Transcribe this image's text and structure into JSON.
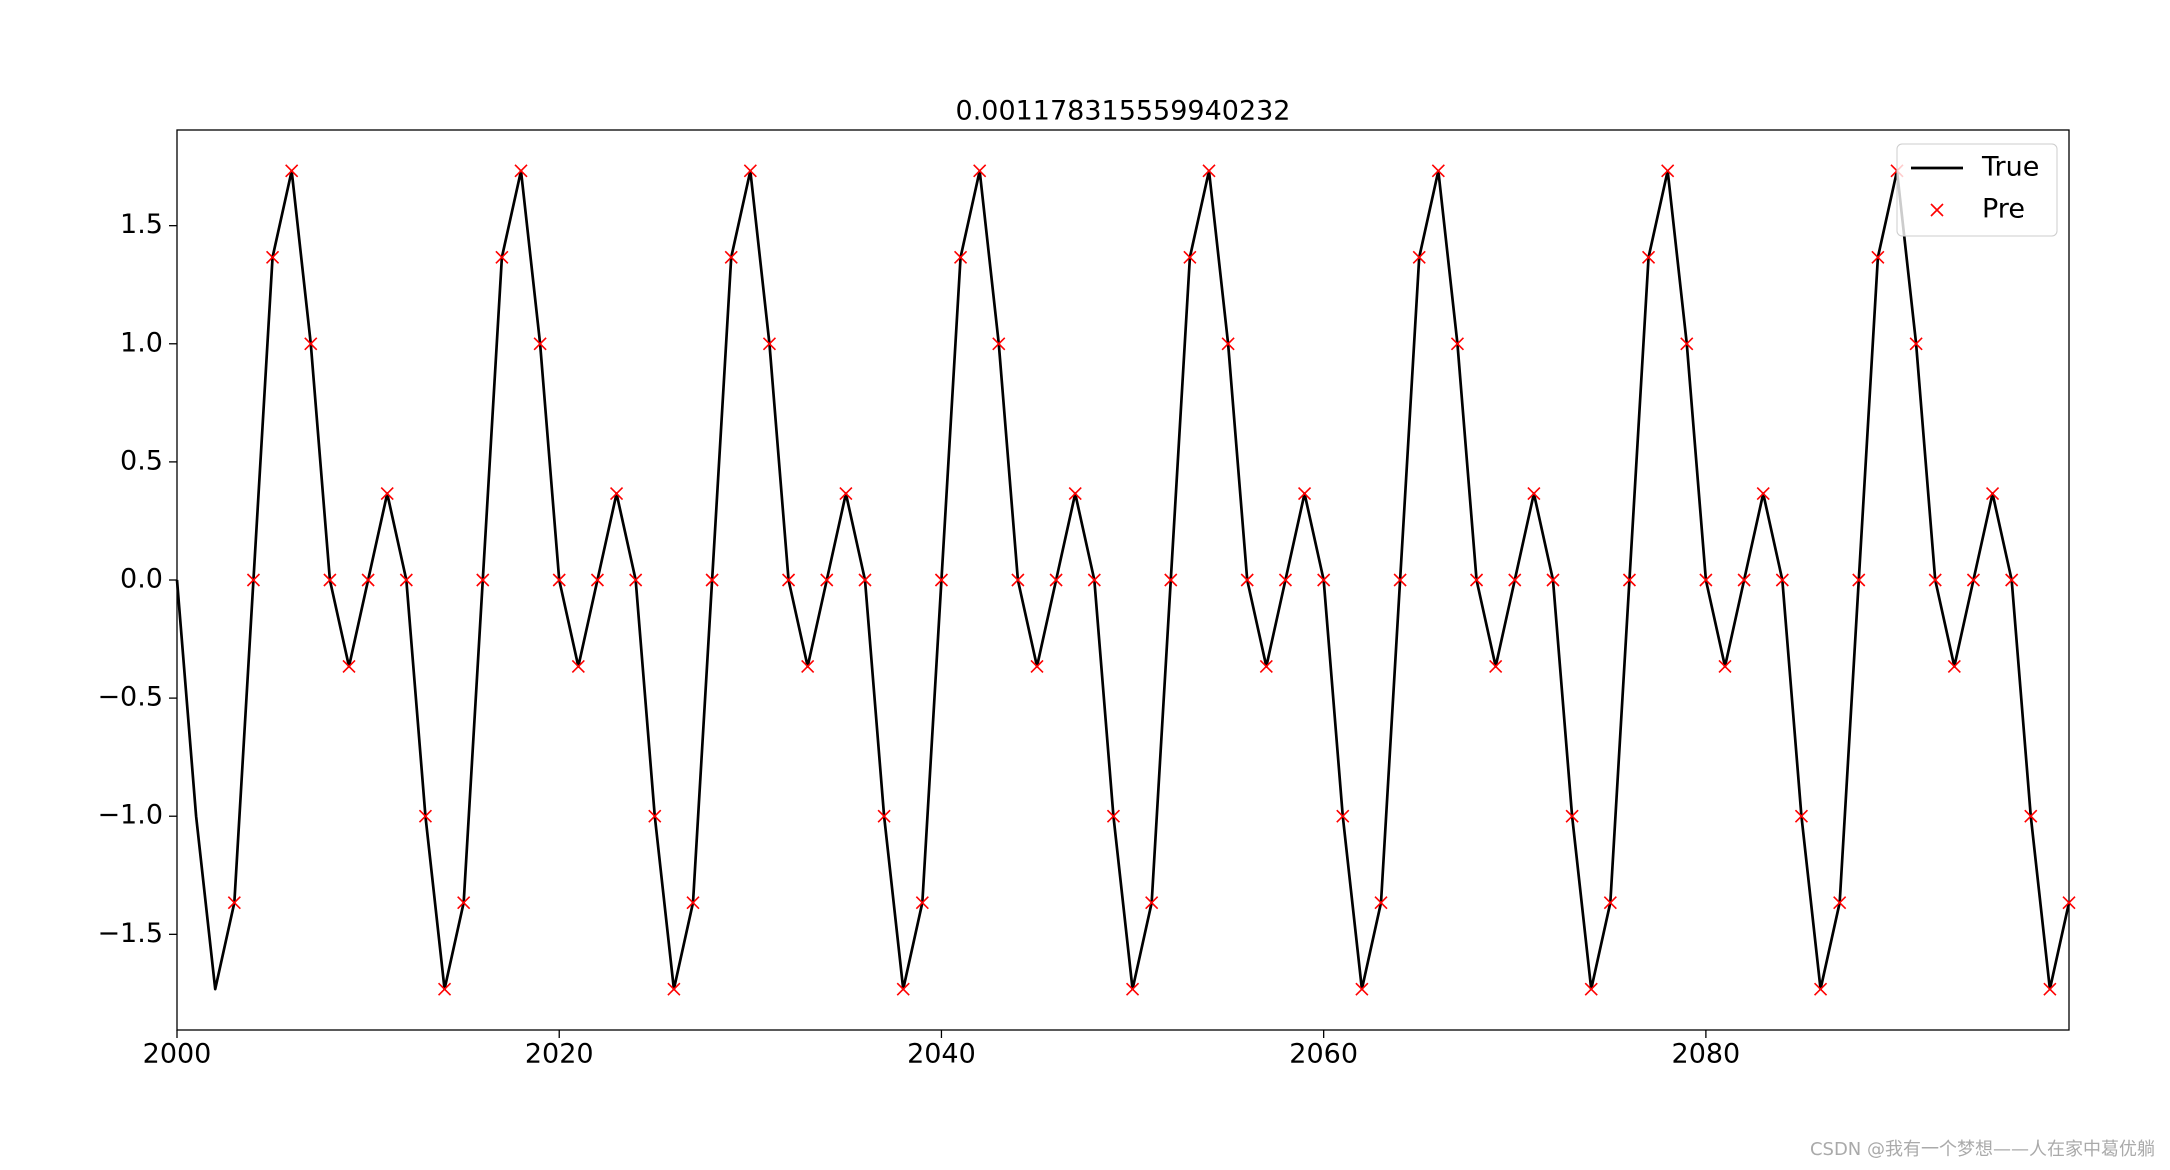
{
  "chart_data": {
    "type": "line",
    "title": "0.001178315559940232",
    "x": [
      2000,
      2001,
      2002,
      2003,
      2004,
      2005,
      2006,
      2007,
      2008,
      2009,
      2010,
      2011,
      2012,
      2013,
      2014,
      2015,
      2016,
      2017,
      2018,
      2019,
      2020,
      2021,
      2022,
      2023,
      2024,
      2025,
      2026,
      2027,
      2028,
      2029,
      2030,
      2031,
      2032,
      2033,
      2034,
      2035,
      2036,
      2037,
      2038,
      2039,
      2040,
      2041,
      2042,
      2043,
      2044,
      2045,
      2046,
      2047,
      2048,
      2049,
      2050,
      2051,
      2052,
      2053,
      2054,
      2055,
      2056,
      2057,
      2058,
      2059,
      2060,
      2061,
      2062,
      2063,
      2064,
      2065,
      2066,
      2067,
      2068,
      2069,
      2070,
      2071,
      2072,
      2073,
      2074,
      2075,
      2076,
      2077,
      2078,
      2079,
      2080,
      2081,
      2082,
      2083,
      2084,
      2085,
      2086,
      2087,
      2088,
      2089,
      2090,
      2091,
      2092,
      2093,
      2094,
      2095,
      2096,
      2097,
      2098,
      2099
    ],
    "series": [
      {
        "name": "True",
        "color": "#000000",
        "marker": "none",
        "values": [
          0,
          -1,
          -1.732,
          -1.366,
          0,
          1.366,
          1.732,
          1,
          0,
          -0.366,
          0,
          0.366,
          0,
          -1,
          -1.732,
          -1.366,
          0,
          1.366,
          1.732,
          1,
          0,
          -0.366,
          0,
          0.366,
          0,
          -1,
          -1.732,
          -1.366,
          0,
          1.366,
          1.732,
          1,
          0,
          -0.366,
          0,
          0.366,
          0,
          -1,
          -1.732,
          -1.366,
          0,
          1.366,
          1.732,
          1,
          0,
          -0.366,
          0,
          0.366,
          0,
          -1,
          -1.732,
          -1.366,
          0,
          1.366,
          1.732,
          1,
          0,
          -0.366,
          0,
          0.366,
          0,
          -1,
          -1.732,
          -1.366,
          0,
          1.366,
          1.732,
          1,
          0,
          -0.366,
          0,
          0.366,
          0,
          -1,
          -1.732,
          -1.366,
          0,
          1.366,
          1.732,
          1,
          0,
          -0.366,
          0,
          0.366,
          0,
          -1,
          -1.732,
          -1.366,
          0,
          1.366,
          1.732,
          1,
          0,
          -0.366,
          0,
          0.366,
          0,
          -1,
          -1.732,
          -1.366
        ]
      },
      {
        "name": "Pre",
        "color": "#ff0000",
        "marker": "x",
        "values": [
          null,
          null,
          null,
          -1.366,
          0,
          1.366,
          1.732,
          1,
          0,
          -0.366,
          0,
          0.366,
          0,
          -1,
          -1.732,
          -1.366,
          0,
          1.366,
          1.732,
          1,
          0,
          -0.366,
          0,
          0.366,
          0,
          -1,
          -1.732,
          -1.366,
          0,
          1.366,
          1.732,
          1,
          0,
          -0.366,
          0,
          0.366,
          0,
          -1,
          -1.732,
          -1.366,
          0,
          1.366,
          1.732,
          1,
          0,
          -0.366,
          0,
          0.366,
          0,
          -1,
          -1.732,
          -1.366,
          0,
          1.366,
          1.732,
          1,
          0,
          -0.366,
          0,
          0.366,
          0,
          -1,
          -1.732,
          -1.366,
          0,
          1.366,
          1.732,
          1,
          0,
          -0.366,
          0,
          0.366,
          0,
          -1,
          -1.732,
          -1.366,
          0,
          1.366,
          1.732,
          1,
          0,
          -0.366,
          0,
          0.366,
          0,
          -1,
          -1.732,
          -1.366,
          0,
          1.366,
          1.732,
          1,
          0,
          -0.366,
          0,
          0.366,
          0,
          -1,
          -1.732,
          -1.366
        ]
      }
    ],
    "xlim": [
      2000,
      2099
    ],
    "xticks": [
      2000,
      2020,
      2040,
      2060,
      2080
    ],
    "ylim": [
      -1.905,
      1.905
    ],
    "yticks": [
      {
        "value": -1.5,
        "label": "−1.5"
      },
      {
        "value": -1,
        "label": "−1.0"
      },
      {
        "value": -0.5,
        "label": "−0.5"
      },
      {
        "value": 0,
        "label": "0.0"
      },
      {
        "value": 0.5,
        "label": "0.5"
      },
      {
        "value": 1,
        "label": "1.0"
      },
      {
        "value": 1.5,
        "label": "1.5"
      }
    ],
    "legend": "upper right",
    "grid": false
  },
  "watermark": "CSDN @我有一个梦想——人在家中葛优躺"
}
